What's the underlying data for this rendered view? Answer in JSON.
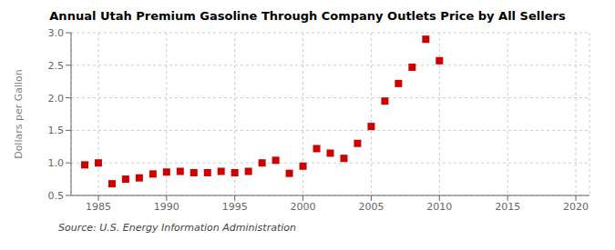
{
  "chart_data": {
    "type": "scatter",
    "title": "Annual Utah Premium Gasoline Through Company Outlets Price by All Sellers",
    "ylabel": "Dollars per Gallon",
    "source": "Source: U.S. Energy Information Administration",
    "x": [
      1984,
      1985,
      1986,
      1987,
      1988,
      1989,
      1990,
      1991,
      1992,
      1993,
      1994,
      1995,
      1996,
      1997,
      1998,
      1999,
      2000,
      2001,
      2002,
      2003,
      2004,
      2005,
      2006,
      2007,
      2008,
      2009,
      2010
    ],
    "values": [
      0.97,
      1.0,
      0.68,
      0.75,
      0.77,
      0.83,
      0.86,
      0.87,
      0.85,
      0.85,
      0.87,
      0.85,
      0.87,
      1.0,
      1.04,
      0.84,
      0.95,
      1.22,
      1.15,
      1.07,
      1.3,
      1.56,
      1.95,
      2.22,
      2.47,
      2.9,
      2.57
    ],
    "color": "#cc0000",
    "marker": "square",
    "xlim": [
      1983,
      2021
    ],
    "ylim": [
      0.5,
      3.0
    ],
    "xticks": [
      1985,
      1990,
      1995,
      2000,
      2005,
      2010,
      2015,
      2020
    ],
    "yticks": [
      0.5,
      {
        "value": 1,
        "label": "1.0"
      },
      1.5,
      {
        "value": 2,
        "label": "2.0"
      },
      2.5,
      {
        "value": 3,
        "label": "3.0"
      }
    ],
    "grid": true
  }
}
